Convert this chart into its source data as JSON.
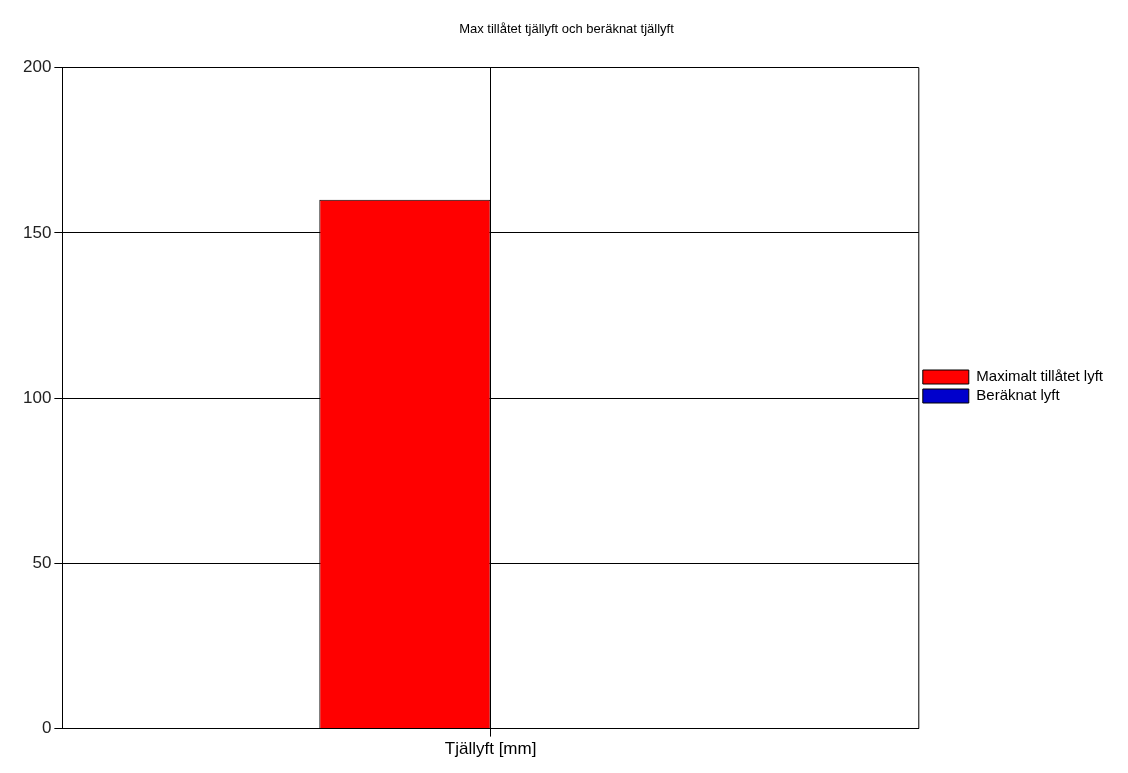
{
  "chart_data": {
    "type": "bar",
    "title": "Max tillåtet tjällyft och beräknat tjällyft",
    "categories": [
      "Tjällyft [mm]"
    ],
    "series": [
      {
        "name": "Maximalt tillåtet lyft",
        "color": "#ff0000",
        "values": [
          160
        ]
      },
      {
        "name": "Beräknat lyft",
        "color": "#0000cc",
        "values": [
          0
        ]
      }
    ],
    "ylim": [
      0,
      200
    ],
    "yticks": [
      0,
      50,
      100,
      150,
      200
    ],
    "grid": true,
    "legend": "right"
  }
}
